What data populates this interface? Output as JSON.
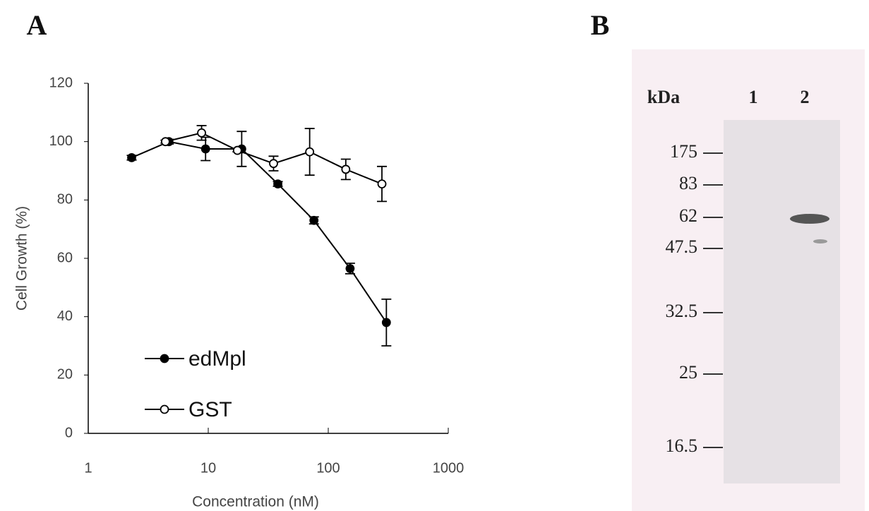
{
  "chart_data": {
    "type": "line",
    "panel_label": "A",
    "xlabel": "Concentration (nM)",
    "ylabel": "Cell Growth (%)",
    "xscale": "log",
    "xlim": [
      1,
      1000
    ],
    "xticks": [
      1,
      10,
      100,
      1000
    ],
    "ylim": [
      0,
      120
    ],
    "yticks": [
      0,
      20,
      40,
      60,
      80,
      100,
      120
    ],
    "grid": false,
    "legend": "lower left",
    "series": [
      {
        "name": "edMpl",
        "color": "#000000",
        "marker": "filled",
        "x": [
          2.3,
          4.7,
          9.5,
          19,
          38,
          76,
          152,
          305
        ],
        "values": [
          94.5,
          100,
          97.5,
          97.5,
          85.5,
          73,
          56.5,
          38
        ],
        "errors": [
          0.8,
          0.8,
          4,
          6,
          0.8,
          1.2,
          1.8,
          8
        ]
      },
      {
        "name": "GST",
        "color": "#000000",
        "marker": "open",
        "x": [
          4.4,
          8.8,
          17.5,
          35,
          70,
          140,
          280
        ],
        "values": [
          100,
          103,
          97,
          92.5,
          96.5,
          90.5,
          85.5
        ],
        "errors": [
          0.5,
          2.5,
          0.5,
          2.5,
          8,
          3.5,
          6
        ]
      }
    ]
  },
  "blot": {
    "panel_label": "B",
    "unit": "kDa",
    "lanes": [
      "1",
      "2"
    ],
    "markers": [
      175,
      83,
      62,
      47.5,
      32.5,
      25,
      16.5
    ]
  }
}
